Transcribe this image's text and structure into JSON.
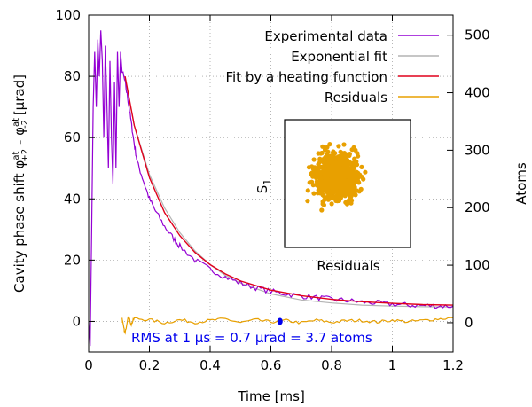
{
  "chart_data": {
    "type": "line",
    "xlabel": "Time [ms]",
    "ylabel_main": "Cavity phase shift φ",
    "ylabel_sup1": "at",
    "ylabel_sub1": "+2",
    "ylabel_mid": " - φ",
    "ylabel_sup2": "at",
    "ylabel_sub2": "-2",
    "ylabel_unit": " [μrad]",
    "y2label": "Atoms",
    "xlim": [
      0,
      1.2
    ],
    "ylim": [
      -10,
      100
    ],
    "y2lim": [
      -51,
      535
    ],
    "x_ticks": [
      "0",
      "0.2",
      "0.4",
      "0.6",
      "0.8",
      "1",
      "1.2"
    ],
    "x_tick_values": [
      0,
      0.2,
      0.4,
      0.6,
      0.8,
      1.0,
      1.2
    ],
    "y_ticks": [
      "0",
      "20",
      "40",
      "60",
      "80",
      "100"
    ],
    "y_tick_values": [
      0,
      20,
      40,
      60,
      80,
      100
    ],
    "y2_ticks": [
      "0",
      "100",
      "200",
      "300",
      "400",
      "500"
    ],
    "y2_tick_values": [
      0,
      100,
      200,
      300,
      400,
      500
    ],
    "grid": true,
    "legend_position": "top-right",
    "series": [
      {
        "name": "Experimental data",
        "color": "#9400d3",
        "points": [
          [
            0.0,
            0
          ],
          [
            0.005,
            -8
          ],
          [
            0.01,
            30
          ],
          [
            0.015,
            70
          ],
          [
            0.02,
            88
          ],
          [
            0.025,
            70
          ],
          [
            0.03,
            92
          ],
          [
            0.035,
            80
          ],
          [
            0.04,
            95
          ],
          [
            0.045,
            85
          ],
          [
            0.05,
            60
          ],
          [
            0.055,
            90
          ],
          [
            0.06,
            72
          ],
          [
            0.065,
            50
          ],
          [
            0.07,
            85
          ],
          [
            0.075,
            60
          ],
          [
            0.08,
            45
          ],
          [
            0.085,
            78
          ],
          [
            0.09,
            50
          ],
          [
            0.095,
            88
          ],
          [
            0.1,
            70
          ],
          [
            0.105,
            88
          ],
          [
            0.11,
            82
          ],
          [
            0.12,
            78
          ],
          [
            0.13,
            72
          ],
          [
            0.14,
            65
          ],
          [
            0.15,
            58
          ],
          [
            0.16,
            52
          ],
          [
            0.18,
            46
          ],
          [
            0.2,
            40
          ],
          [
            0.22,
            36
          ],
          [
            0.25,
            31
          ],
          [
            0.28,
            27
          ],
          [
            0.3,
            24.5
          ],
          [
            0.35,
            20
          ],
          [
            0.4,
            17
          ],
          [
            0.45,
            14.5
          ],
          [
            0.5,
            12.5
          ],
          [
            0.55,
            11
          ],
          [
            0.6,
            9.8
          ],
          [
            0.65,
            9
          ],
          [
            0.7,
            8.3
          ],
          [
            0.75,
            7.8
          ],
          [
            0.8,
            7.2
          ],
          [
            0.85,
            6.8
          ],
          [
            0.9,
            6.3
          ],
          [
            0.95,
            6
          ],
          [
            1.0,
            5.6
          ],
          [
            1.05,
            5.3
          ],
          [
            1.1,
            5.2
          ],
          [
            1.15,
            5.0
          ],
          [
            1.2,
            5.0
          ]
        ]
      },
      {
        "name": "Exponential fit",
        "color": "#b4b4b4",
        "points": [
          [
            0.12,
            79
          ],
          [
            0.15,
            64
          ],
          [
            0.2,
            48
          ],
          [
            0.25,
            37
          ],
          [
            0.3,
            29
          ],
          [
            0.35,
            23
          ],
          [
            0.4,
            18.5
          ],
          [
            0.45,
            15
          ],
          [
            0.5,
            12.5
          ],
          [
            0.6,
            9
          ],
          [
            0.7,
            7
          ],
          [
            0.8,
            6
          ],
          [
            0.9,
            5.3
          ],
          [
            1.0,
            5
          ],
          [
            1.1,
            4.8
          ],
          [
            1.2,
            4.7
          ]
        ]
      },
      {
        "name": "Fit by a heating function",
        "color": "#e0001b",
        "points": [
          [
            0.12,
            80
          ],
          [
            0.15,
            64
          ],
          [
            0.2,
            47
          ],
          [
            0.25,
            35.5
          ],
          [
            0.3,
            28
          ],
          [
            0.35,
            22.5
          ],
          [
            0.4,
            18.5
          ],
          [
            0.45,
            15.5
          ],
          [
            0.5,
            13.2
          ],
          [
            0.6,
            10.2
          ],
          [
            0.7,
            8.4
          ],
          [
            0.8,
            7.2
          ],
          [
            0.9,
            6.4
          ],
          [
            1.0,
            5.9
          ],
          [
            1.1,
            5.5
          ],
          [
            1.2,
            5.3
          ]
        ]
      },
      {
        "name": "Residuals",
        "color": "#e8a000",
        "points": [
          [
            0.11,
            1
          ],
          [
            0.115,
            -2
          ],
          [
            0.12,
            -4
          ],
          [
            0.13,
            2
          ],
          [
            0.14,
            -1
          ],
          [
            0.15,
            1
          ],
          [
            0.2,
            0.5
          ],
          [
            0.25,
            -0.5
          ],
          [
            0.3,
            0.5
          ],
          [
            0.35,
            -0.3
          ],
          [
            0.4,
            0.3
          ],
          [
            0.45,
            0.8
          ],
          [
            0.5,
            -0.4
          ],
          [
            0.55,
            0.5
          ],
          [
            0.6,
            -0.2
          ],
          [
            0.65,
            0.3
          ],
          [
            0.7,
            -0.5
          ],
          [
            0.75,
            0.4
          ],
          [
            0.8,
            -0.3
          ],
          [
            0.85,
            0.2
          ],
          [
            0.9,
            0.3
          ],
          [
            0.95,
            -0.2
          ],
          [
            1.0,
            0.4
          ],
          [
            1.05,
            -0.1
          ],
          [
            1.1,
            0.3
          ],
          [
            1.15,
            0.8
          ],
          [
            1.2,
            1.2
          ]
        ]
      }
    ],
    "marker": {
      "x": 0.63,
      "y": 0,
      "color": "#0000ee"
    },
    "annotation": "RMS at 1 μs = 0.7 μrad = 3.7 atoms",
    "annotation_color": "#0000ee",
    "inset": {
      "ylabel_base": "S",
      "ylabel_sub": "1",
      "xlabel": "Residuals",
      "color": "#e8a000"
    }
  }
}
